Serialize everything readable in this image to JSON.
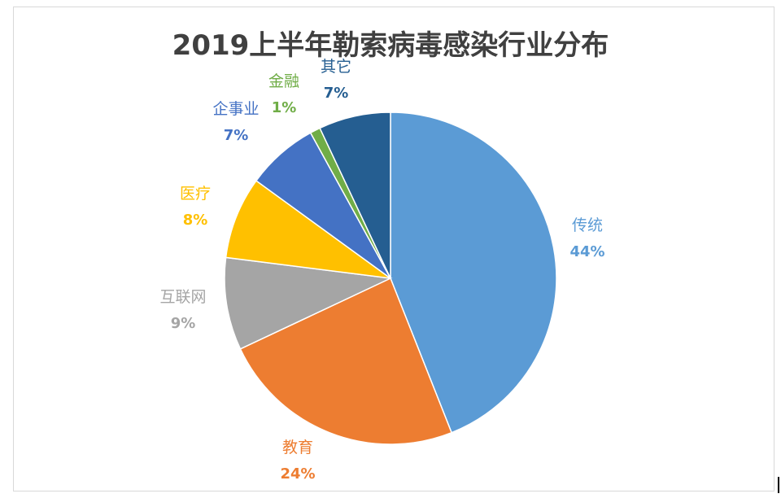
{
  "chart_data": {
    "type": "pie",
    "title": "2019上半年勒索病毒感染行业分布",
    "slices": [
      {
        "label": "传统",
        "value": 44,
        "value_label": "44%",
        "color": "#5b9bd5"
      },
      {
        "label": "教育",
        "value": 24,
        "value_label": "24%",
        "color": "#ed7d31"
      },
      {
        "label": "互联网",
        "value": 9,
        "value_label": "9%",
        "color": "#a5a5a5"
      },
      {
        "label": "医疗",
        "value": 8,
        "value_label": "8%",
        "color": "#ffc000"
      },
      {
        "label": "企事业",
        "value": 7,
        "value_label": "7%",
        "color": "#4472c4"
      },
      {
        "label": "金融",
        "value": 1,
        "value_label": "1%",
        "color": "#70ad47"
      },
      {
        "label": "其它",
        "value": 7,
        "value_label": "7%",
        "color": "#255e91"
      }
    ],
    "legend": "none",
    "grid": false
  }
}
